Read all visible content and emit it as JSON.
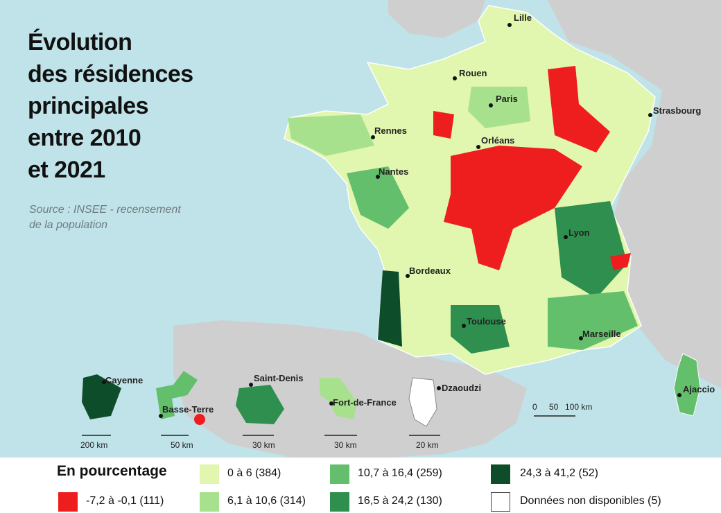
{
  "title": [
    "Évolution",
    "des résidences",
    "principales",
    "entre 2010",
    "et 2021"
  ],
  "source": [
    "Source : INSEE - recensement",
    "de la population"
  ],
  "colors": {
    "sea": "#bfe3e8",
    "neighbors": "#cfcfcf",
    "c0": "#e1f6ae",
    "c1": "#a8e18e",
    "c2": "#63bf6c",
    "c3": "#2e8f4e",
    "c4": "#0e4d2a",
    "neg": "#ef1e1e",
    "na": "#ffffff"
  },
  "cities": {
    "lille": "Lille",
    "rouen": "Rouen",
    "paris": "Paris",
    "strasbourg": "Strasbourg",
    "rennes": "Rennes",
    "orleans": "Orléans",
    "nantes": "Nantes",
    "lyon": "Lyon",
    "bordeaux": "Bordeaux",
    "toulouse": "Toulouse",
    "marseille": "Marseille",
    "ajaccio": "Ajaccio"
  },
  "overseas": {
    "cayenne": "Cayenne",
    "basse_terre": "Basse-Terre",
    "saint_denis": "Saint-Denis",
    "fort_de_france": "Fort-de-France",
    "dzaoudzi": "Dzaoudzi"
  },
  "scales": {
    "guyane": "200 km",
    "guadeloupe": "50 km",
    "reunion": "30 km",
    "martinique": "30 km",
    "mayotte": "20 km",
    "main": [
      "0",
      "50",
      "100 km"
    ]
  },
  "legend": {
    "title": "En pourcentage",
    "items": [
      {
        "label": "-7,2 à -0,1 (111)",
        "color": "#ef1e1e"
      },
      {
        "label": "0 à 6 (384)",
        "color": "#e1f6ae"
      },
      {
        "label": "6,1 à 10,6 (314)",
        "color": "#a8e18e"
      },
      {
        "label": "10,7 à 16,4 (259)",
        "color": "#63bf6c"
      },
      {
        "label": "16,5 à 24,2 (130)",
        "color": "#2e8f4e"
      },
      {
        "label": "24,3 à 41,2 (52)",
        "color": "#0e4d2a"
      },
      {
        "label": "Données non disponibles (5)",
        "color": "#ffffff"
      }
    ]
  }
}
